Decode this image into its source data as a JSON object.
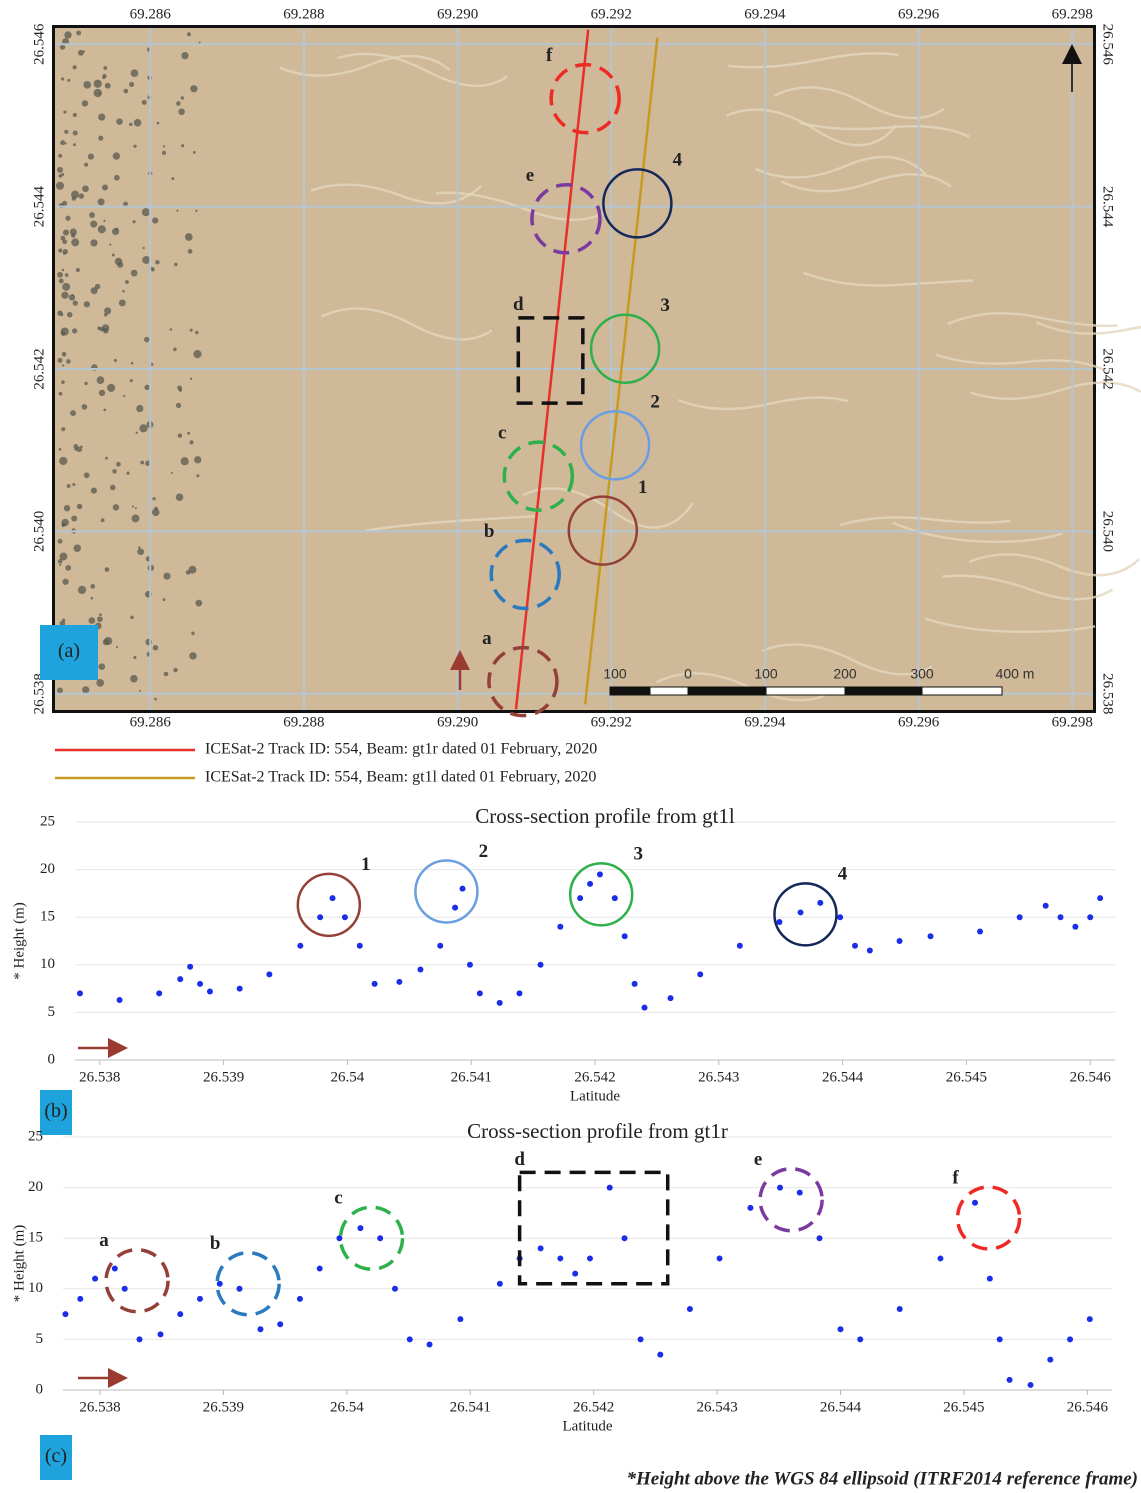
{
  "chart_data": [
    {
      "type": "map",
      "panel_label": "(a)",
      "xlim": [
        69.28476,
        69.29827
      ],
      "ylim": [
        26.5378,
        26.5462
      ],
      "xticks": [
        69.286,
        69.288,
        {
          "value": 69.29,
          "label": "69.290"
        },
        69.292,
        69.294,
        69.296,
        69.298
      ],
      "yticks": [
        26.538,
        {
          "value": 26.54,
          "label": "26.540"
        },
        26.542,
        26.544,
        26.546
      ],
      "grid": true,
      "series": [
        {
          "name": "ICESat-2 Track ID: 554, Beam: gt1r dated 01 February, 2020",
          "color": "#e8302a",
          "x": [
            69.29076,
            69.2917
          ],
          "values": [
            26.53781,
            26.54618
          ]
        },
        {
          "name": "ICESat-2 Track ID: 554, Beam: gt1l dated 01 February, 2020",
          "color": "#c89a22",
          "x": [
            69.29166,
            69.2926
          ],
          "values": [
            26.53787,
            26.54608
          ]
        }
      ],
      "annotations": [
        {
          "label": "f",
          "shape": "circle",
          "style": "dashed",
          "color": "#ee2a24",
          "x": 69.29166,
          "y": 26.54533
        },
        {
          "label": "e",
          "shape": "circle",
          "style": "dashed",
          "color": "#7a3aa0",
          "x": 69.29141,
          "y": 26.54385
        },
        {
          "label": "4",
          "shape": "circle",
          "style": "solid",
          "color": "#14285a",
          "x": 69.29234,
          "y": 26.54404
        },
        {
          "label": "d",
          "shape": "box",
          "style": "dashed",
          "color": "#111111",
          "x": [
            69.29079,
            69.29163
          ],
          "y": [
            26.54158,
            26.54263
          ]
        },
        {
          "label": "3",
          "shape": "circle",
          "style": "solid",
          "color": "#2eb04a",
          "x": 69.29218,
          "y": 26.54225
        },
        {
          "label": "2",
          "shape": "circle",
          "style": "solid",
          "color": "#6a9ee0",
          "x": 69.29205,
          "y": 26.54106
        },
        {
          "label": "c",
          "shape": "circle",
          "style": "dashed",
          "color": "#2eb04a",
          "x": 69.29105,
          "y": 26.54068
        },
        {
          "label": "1",
          "shape": "circle",
          "style": "solid",
          "color": "#944038",
          "x": 69.29189,
          "y": 26.54001
        },
        {
          "label": "b",
          "shape": "circle",
          "style": "dashed",
          "color": "#2a7ac0",
          "x": 69.29088,
          "y": 26.53947
        },
        {
          "label": "a",
          "shape": "circle",
          "style": "dashed",
          "color": "#944038",
          "x": 69.29085,
          "y": 26.53815
        }
      ],
      "scale_bar": [
        "100",
        "0",
        "100",
        "200",
        "300",
        "400 m"
      ]
    },
    {
      "type": "scatter",
      "panel_label": "(b)",
      "title": "Cross-section profile from gt1l",
      "x_label": "Latitude",
      "y_label": "* Height (m)",
      "color": "#1a2ee8",
      "xlim": [
        26.5378,
        26.5462
      ],
      "ylim": [
        0,
        25
      ],
      "xticks": [
        26.538,
        26.539,
        26.54,
        26.541,
        26.542,
        26.543,
        26.544,
        26.545,
        26.546
      ],
      "yticks": [
        0,
        5,
        10,
        15,
        20,
        25
      ],
      "grid": true,
      "x": [
        26.53784,
        26.53816,
        26.53848,
        26.53865,
        26.53873,
        26.53881,
        26.53889,
        26.53913,
        26.53937,
        26.53962,
        26.53978,
        26.53988,
        26.53998,
        26.5401,
        26.54022,
        26.54042,
        26.54059,
        26.54075,
        26.54087,
        26.54093,
        26.54099,
        26.54107,
        26.54123,
        26.54139,
        26.54156,
        26.54172,
        26.54188,
        26.54196,
        26.54204,
        26.54216,
        26.54224,
        26.54232,
        26.5424,
        26.54261,
        26.54285,
        26.54317,
        26.54349,
        26.54366,
        26.54382,
        26.54398,
        26.5441,
        26.54422,
        26.54446,
        26.54471,
        26.54511,
        26.54543,
        26.54564,
        26.54576,
        26.54588,
        26.546,
        26.54608
      ],
      "values": [
        7,
        6.3,
        7,
        8.5,
        9.8,
        8,
        7.2,
        7.5,
        9,
        12,
        15,
        17,
        15,
        12,
        8,
        8.2,
        9.5,
        12,
        16,
        18,
        10,
        7,
        6,
        7,
        10,
        14,
        17,
        18.5,
        19.5,
        17,
        13,
        8,
        5.5,
        6.5,
        9,
        12,
        14.5,
        15.5,
        16.5,
        15,
        12,
        11.5,
        12.5,
        13,
        13.5,
        15,
        16.2,
        15,
        14,
        15,
        17
      ],
      "annotations": [
        {
          "label": "1",
          "shape": "circle",
          "style": "solid",
          "color": "#944038",
          "x": 26.53985,
          "y": 16.3
        },
        {
          "label": "2",
          "shape": "circle",
          "style": "solid",
          "color": "#6a9ee0",
          "x": 26.5408,
          "y": 17.7
        },
        {
          "label": "3",
          "shape": "circle",
          "style": "solid",
          "color": "#2eb04a",
          "x": 26.54205,
          "y": 17.4
        },
        {
          "label": "4",
          "shape": "circle",
          "style": "solid",
          "color": "#14285a",
          "x": 26.5437,
          "y": 15.3
        }
      ]
    },
    {
      "type": "scatter",
      "panel_label": "(c)",
      "title": "Cross-section profile from gt1r",
      "x_label": "Latitude",
      "y_label": "* Height (m)",
      "color": "#1a2ee8",
      "xlim": [
        26.5377,
        26.5462
      ],
      "ylim": [
        0,
        25
      ],
      "xticks": [
        26.538,
        26.539,
        26.54,
        26.541,
        26.542,
        26.543,
        26.544,
        26.545,
        26.546
      ],
      "yticks": [
        0,
        5,
        10,
        15,
        20,
        25
      ],
      "grid": true,
      "x": [
        26.53772,
        26.53784,
        26.53796,
        26.53812,
        26.5382,
        26.53832,
        26.53849,
        26.53865,
        26.53881,
        26.53897,
        26.53913,
        26.5393,
        26.53946,
        26.53962,
        26.53978,
        26.53994,
        26.54011,
        26.54027,
        26.54039,
        26.54051,
        26.54067,
        26.54092,
        26.54124,
        26.5414,
        26.54157,
        26.54173,
        26.54185,
        26.54197,
        26.54213,
        26.54225,
        26.54238,
        26.54254,
        26.54278,
        26.54302,
        26.54327,
        26.54351,
        26.54367,
        26.54383,
        26.544,
        26.54416,
        26.54448,
        26.54481,
        26.54509,
        26.54521,
        26.54529,
        26.54537,
        26.54554,
        26.5457,
        26.54586,
        26.54602
      ],
      "values": [
        7.5,
        9,
        11,
        12,
        10,
        5,
        5.5,
        7.5,
        9,
        10.5,
        10,
        6,
        6.5,
        9,
        12,
        15,
        16,
        15,
        10,
        5,
        4.5,
        7,
        10.5,
        13,
        14,
        13,
        11.5,
        13,
        20,
        15,
        5,
        3.5,
        8,
        13,
        18,
        20,
        19.5,
        15,
        6,
        5,
        8,
        13,
        18.5,
        11,
        5,
        1,
        0.5,
        3,
        5,
        7
      ],
      "annotations": [
        {
          "label": "a",
          "shape": "circle",
          "style": "dashed",
          "color": "#944038",
          "x": 26.5383,
          "y": 10.8
        },
        {
          "label": "b",
          "shape": "circle",
          "style": "dashed",
          "color": "#2a7ac0",
          "x": 26.5392,
          "y": 10.5
        },
        {
          "label": "c",
          "shape": "circle",
          "style": "dashed",
          "color": "#2eb04a",
          "x": 26.5402,
          "y": 15
        },
        {
          "label": "d",
          "shape": "box",
          "style": "dashed",
          "color": "#111111",
          "x": [
            26.5414,
            26.5426
          ],
          "y": [
            10.5,
            21.5
          ]
        },
        {
          "label": "e",
          "shape": "circle",
          "style": "dashed",
          "color": "#7a3aa0",
          "x": 26.5436,
          "y": 18.8
        },
        {
          "label": "f",
          "shape": "circle",
          "style": "dashed",
          "color": "#ee2a24",
          "x": 26.5452,
          "y": 17
        }
      ]
    }
  ],
  "footnote": "*Height above the WGS 84 ellipsoid (ITRF2014 reference frame)"
}
